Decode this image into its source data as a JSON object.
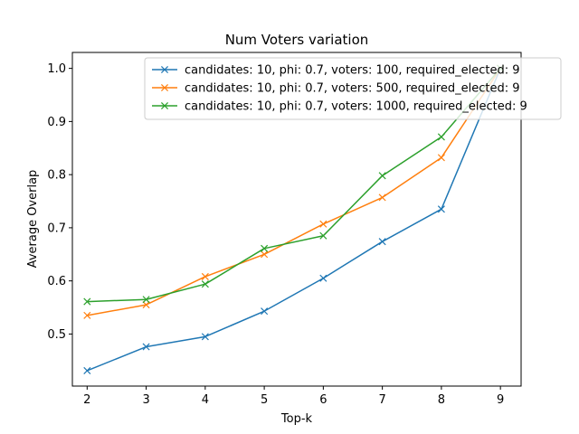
{
  "chart_data": {
    "type": "line",
    "title": "Num Voters variation",
    "xlabel": "Top-k",
    "ylabel": "Average Overlap",
    "x": [
      2,
      3,
      4,
      5,
      6,
      7,
      8,
      9
    ],
    "xlim": [
      1.75,
      9.35
    ],
    "ylim": [
      0.402,
      1.03
    ],
    "yticks": [
      0.5,
      0.6,
      0.7,
      0.8,
      0.9,
      1.0
    ],
    "ytick_labels": [
      "0.5",
      "0.6",
      "0.7",
      "0.8",
      "0.9",
      "1.0"
    ],
    "xtick_labels": [
      "2",
      "3",
      "4",
      "5",
      "6",
      "7",
      "8",
      "9"
    ],
    "marker": "x",
    "grid": false,
    "legend_position": "top-right",
    "series": [
      {
        "name": " candidates: 10, phi: 0.7, voters: 100, required_elected: 9",
        "color": "#1f77b4",
        "values": [
          0.431,
          0.476,
          0.495,
          0.543,
          0.605,
          0.674,
          0.735,
          1.0
        ]
      },
      {
        "name": " candidates: 10, phi: 0.7, voters: 500, required_elected: 9",
        "color": "#ff7f0e",
        "values": [
          0.535,
          0.555,
          0.608,
          0.65,
          0.707,
          0.757,
          0.832,
          1.0
        ]
      },
      {
        "name": " candidates: 10, phi: 0.7, voters: 1000, required_elected: 9",
        "color": "#2ca02c",
        "values": [
          0.561,
          0.565,
          0.594,
          0.661,
          0.685,
          0.798,
          0.871,
          1.0
        ]
      }
    ]
  }
}
